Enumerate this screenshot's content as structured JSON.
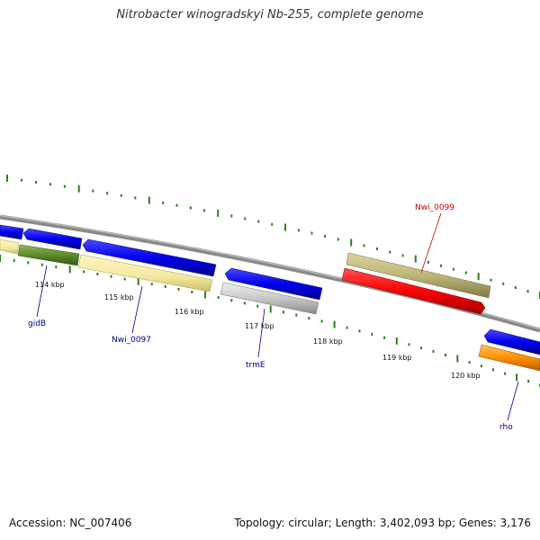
{
  "title": "Nitrobacter winogradskyi Nb-255, complete genome",
  "footer": {
    "accession": "Accession: NC_007406",
    "summary": "Topology: circular; Length: 3,402,093 bp; Genes: 3,176"
  },
  "colors": {
    "backbone": "#8a8a8a",
    "tick": "#2e7d1e",
    "blue_feature": "#0000ee",
    "yellow_feature": "#f3e9a0",
    "green_feature": "#5e8a2a",
    "gray_feature": "#c8c8c8",
    "olive_feature": "#bdb77a",
    "red_feature": "#ff0000",
    "orange_feature": "#ff9000",
    "label_blue": "#00008b",
    "label_red": "#cc0000"
  },
  "ruler": {
    "labels": [
      "114 kbp",
      "115 kbp",
      "116 kbp",
      "117 kbp",
      "118 kbp",
      "119 kbp",
      "120 kbp"
    ]
  },
  "genes": {
    "gidB": "gidB",
    "Nwi_0097": "Nwi_0097",
    "trmE": "trmE",
    "Nwi_0099": "Nwi_0099",
    "rho": "rho"
  }
}
